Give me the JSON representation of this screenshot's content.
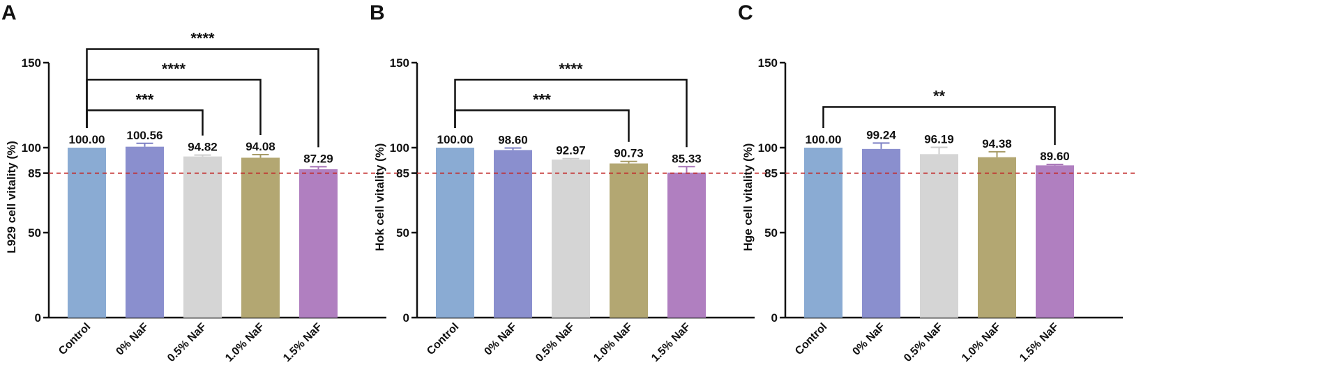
{
  "colors": {
    "reference_line": "#c22a2a",
    "bars": [
      "#8aabd3",
      "#8a8fce",
      "#d5d5d5",
      "#b3a772",
      "#b07fc0"
    ],
    "error_bars": [
      "#8aabd3",
      "#7d80c4",
      "#cccccc",
      "#a79b66",
      "#a672b6"
    ]
  },
  "chart_data": [
    {
      "panel": "A",
      "type": "bar",
      "ylabel": "L929 cell vitality (%)",
      "categories": [
        "Control",
        "0% NaF",
        "0.5% NaF",
        "1.0% NaF",
        "1.5% NaF"
      ],
      "values": [
        100.0,
        100.56,
        94.82,
        94.08,
        87.29
      ],
      "value_labels": [
        "100.00",
        "100.56",
        "94.82",
        "94.08",
        "87.29"
      ],
      "errors": [
        0,
        2.0,
        0.8,
        1.8,
        1.5
      ],
      "ylim": [
        0,
        150
      ],
      "yticks": [
        0,
        50,
        85,
        100,
        150
      ],
      "reference_line": 85,
      "significance": [
        {
          "from": 0,
          "to": 2,
          "label": "***",
          "level": 122
        },
        {
          "from": 0,
          "to": 3,
          "label": "****",
          "level": 140
        },
        {
          "from": 0,
          "to": 4,
          "label": "****",
          "level": 158
        }
      ]
    },
    {
      "panel": "B",
      "type": "bar",
      "ylabel": "Hok cell vitality (%)",
      "categories": [
        "Control",
        "0% NaF",
        "0.5% NaF",
        "1.0% NaF",
        "1.5% NaF"
      ],
      "values": [
        100.0,
        98.6,
        92.97,
        90.73,
        85.33
      ],
      "value_labels": [
        "100.00",
        "98.60",
        "92.97",
        "90.73",
        "85.33"
      ],
      "errors": [
        0,
        1.2,
        0.6,
        1.2,
        3.5
      ],
      "ylim": [
        0,
        150
      ],
      "yticks": [
        0,
        50,
        85,
        100,
        150
      ],
      "reference_line": 85,
      "significance": [
        {
          "from": 0,
          "to": 3,
          "label": "***",
          "level": 122
        },
        {
          "from": 0,
          "to": 4,
          "label": "****",
          "level": 140
        }
      ]
    },
    {
      "panel": "C",
      "type": "bar",
      "ylabel": "Hge cell vitality (%)",
      "categories": [
        "Control",
        "0% NaF",
        "0.5% NaF",
        "1.0% NaF",
        "1.5% NaF"
      ],
      "values": [
        100.0,
        99.24,
        96.19,
        94.38,
        89.6
      ],
      "value_labels": [
        "100.00",
        "99.24",
        "96.19",
        "94.38",
        "89.60"
      ],
      "errors": [
        0,
        3.5,
        4.0,
        3.2,
        0.5
      ],
      "ylim": [
        0,
        150
      ],
      "yticks": [
        0,
        50,
        85,
        100,
        150
      ],
      "reference_line": 85,
      "significance": [
        {
          "from": 0,
          "to": 4,
          "label": "**",
          "level": 124
        }
      ]
    }
  ]
}
